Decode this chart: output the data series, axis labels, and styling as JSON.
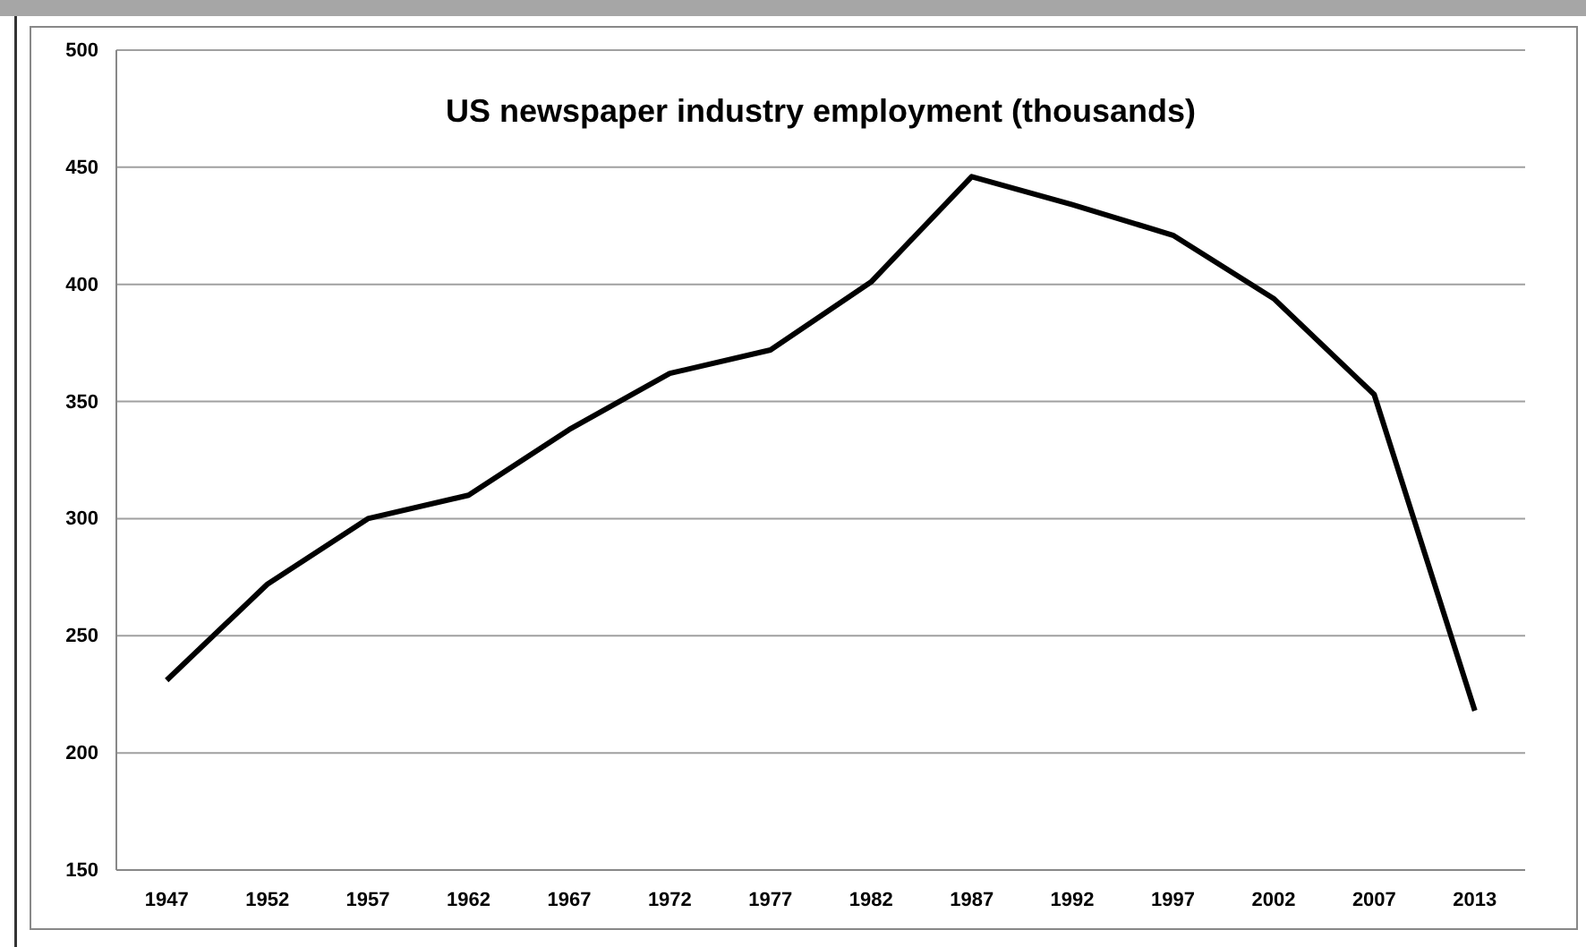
{
  "chart_data": {
    "type": "line",
    "title": "US newspaper industry employment (thousands)",
    "categories": [
      "1947",
      "1952",
      "1957",
      "1962",
      "1967",
      "1972",
      "1977",
      "1982",
      "1987",
      "1992",
      "1997",
      "2002",
      "2007",
      "2013"
    ],
    "series": [
      {
        "color": "#000000",
        "values": [
          231,
          272,
          300,
          310,
          338,
          362,
          372,
          401,
          446,
          434,
          421,
          394,
          353,
          218
        ]
      }
    ],
    "ylim": [
      150,
      500
    ],
    "yticks": [
      150,
      200,
      250,
      300,
      350,
      400,
      450,
      500
    ],
    "grid": "y",
    "marker": "none",
    "line_style": "solid"
  }
}
